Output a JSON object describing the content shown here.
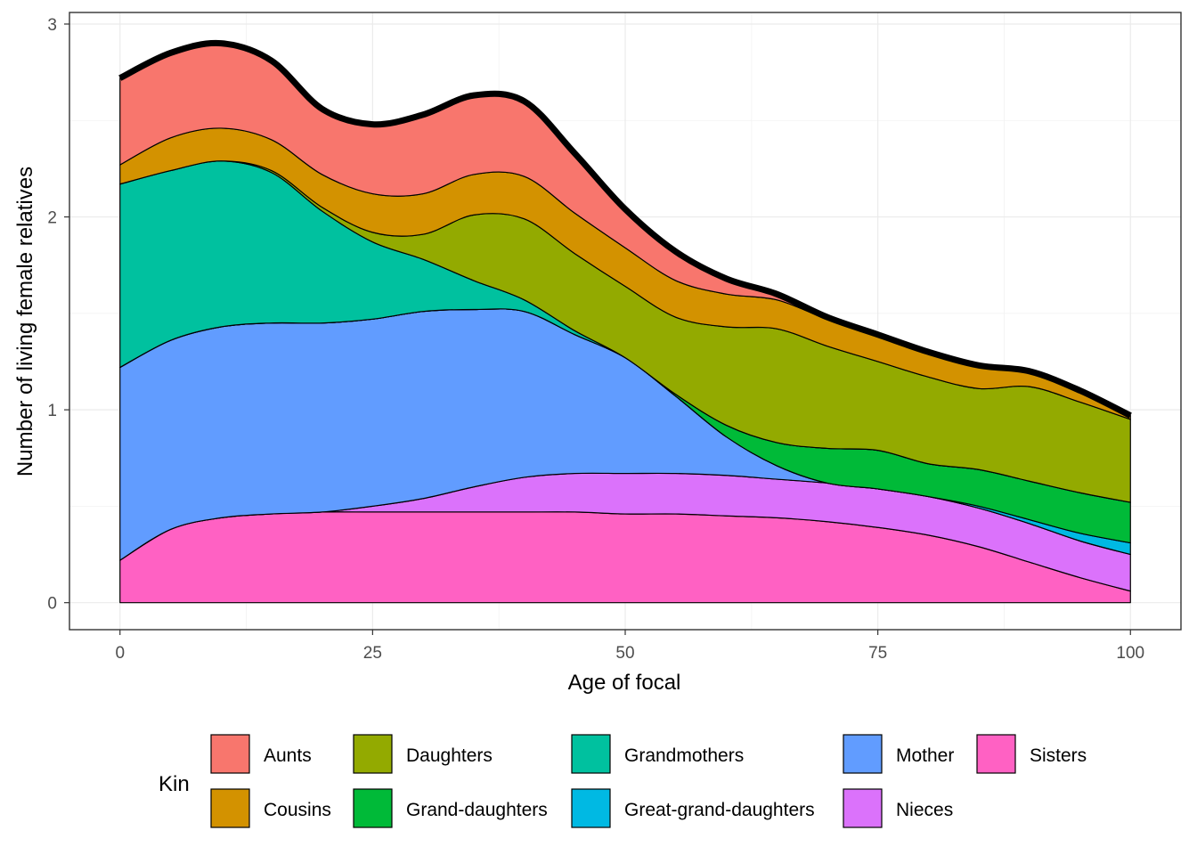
{
  "chart_data": {
    "type": "area",
    "stacked": true,
    "smoothed": true,
    "xlabel": "Age of focal",
    "ylabel": "Number of living female relatives",
    "xlim": [
      -5,
      105
    ],
    "ylim": [
      -0.14,
      3.06
    ],
    "x_ticks": [
      0,
      25,
      50,
      75,
      100
    ],
    "y_ticks": [
      0,
      1,
      2,
      3
    ],
    "grid": true,
    "legend_position": "bottom",
    "legend_title": "Kin",
    "x": [
      0,
      5,
      10,
      15,
      20,
      25,
      30,
      35,
      40,
      45,
      50,
      55,
      60,
      65,
      70,
      75,
      80,
      85,
      90,
      95,
      100
    ],
    "series": [
      {
        "name": "Sisters",
        "color": "#FF61C3",
        "values": [
          0.22,
          0.38,
          0.44,
          0.46,
          0.47,
          0.47,
          0.47,
          0.47,
          0.47,
          0.47,
          0.46,
          0.46,
          0.45,
          0.44,
          0.42,
          0.39,
          0.35,
          0.29,
          0.21,
          0.13,
          0.06
        ]
      },
      {
        "name": "Nieces",
        "color": "#DB72FB",
        "values": [
          0.0,
          0.0,
          0.0,
          0.0,
          0.0,
          0.03,
          0.07,
          0.13,
          0.18,
          0.2,
          0.21,
          0.21,
          0.21,
          0.2,
          0.2,
          0.2,
          0.2,
          0.2,
          0.2,
          0.19,
          0.19
        ]
      },
      {
        "name": "Mother",
        "color": "#619CFF",
        "values": [
          1.0,
          0.98,
          0.99,
          0.99,
          0.98,
          0.97,
          0.97,
          0.92,
          0.86,
          0.72,
          0.6,
          0.4,
          0.2,
          0.07,
          0.0,
          0.0,
          0.0,
          0.0,
          0.0,
          0.0,
          0.0
        ]
      },
      {
        "name": "Great-grand-daughters",
        "color": "#00B9E3",
        "values": [
          0.0,
          0.0,
          0.0,
          0.0,
          0.0,
          0.0,
          0.0,
          0.0,
          0.0,
          0.0,
          0.0,
          0.0,
          0.0,
          0.0,
          0.0,
          0.0,
          0.0,
          0.01,
          0.02,
          0.04,
          0.06
        ]
      },
      {
        "name": "Grand-daughters",
        "color": "#00BA38",
        "values": [
          0.0,
          0.0,
          0.0,
          0.0,
          0.0,
          0.0,
          0.0,
          0.0,
          0.0,
          0.0,
          0.0,
          0.01,
          0.06,
          0.12,
          0.18,
          0.2,
          0.17,
          0.19,
          0.2,
          0.21,
          0.21
        ]
      },
      {
        "name": "Grandmothers",
        "color": "#00C19F",
        "values": [
          0.95,
          0.88,
          0.86,
          0.78,
          0.58,
          0.4,
          0.27,
          0.15,
          0.06,
          0.02,
          0.0,
          0.0,
          0.0,
          0.0,
          0.0,
          0.0,
          0.0,
          0.0,
          0.0,
          0.0,
          0.0
        ]
      },
      {
        "name": "Daughters",
        "color": "#93AA00",
        "values": [
          0.0,
          0.0,
          0.0,
          0.01,
          0.02,
          0.05,
          0.13,
          0.34,
          0.42,
          0.4,
          0.37,
          0.4,
          0.51,
          0.59,
          0.53,
          0.46,
          0.45,
          0.42,
          0.49,
          0.47,
          0.43
        ]
      },
      {
        "name": "Cousins",
        "color": "#D39200",
        "values": [
          0.1,
          0.17,
          0.17,
          0.16,
          0.17,
          0.2,
          0.21,
          0.21,
          0.22,
          0.21,
          0.2,
          0.19,
          0.17,
          0.15,
          0.14,
          0.14,
          0.13,
          0.12,
          0.08,
          0.06,
          0.02
        ]
      },
      {
        "name": "Aunts",
        "color": "#F8766D",
        "values": [
          0.45,
          0.44,
          0.44,
          0.41,
          0.34,
          0.36,
          0.41,
          0.41,
          0.39,
          0.31,
          0.2,
          0.15,
          0.08,
          0.03,
          0.01,
          0.0,
          0.0,
          0.0,
          0.0,
          0.0,
          0.0
        ]
      }
    ],
    "legend_entries": [
      {
        "label": "Aunts",
        "color": "#F8766D"
      },
      {
        "label": "Cousins",
        "color": "#D39200"
      },
      {
        "label": "Daughters",
        "color": "#93AA00"
      },
      {
        "label": "Grand-daughters",
        "color": "#00BA38"
      },
      {
        "label": "Grandmothers",
        "color": "#00C19F"
      },
      {
        "label": "Great-grand-daughters",
        "color": "#00B9E3"
      },
      {
        "label": "Mother",
        "color": "#619CFF"
      },
      {
        "label": "Nieces",
        "color": "#DB72FB"
      },
      {
        "label": "Sisters",
        "color": "#FF61C3"
      }
    ]
  }
}
